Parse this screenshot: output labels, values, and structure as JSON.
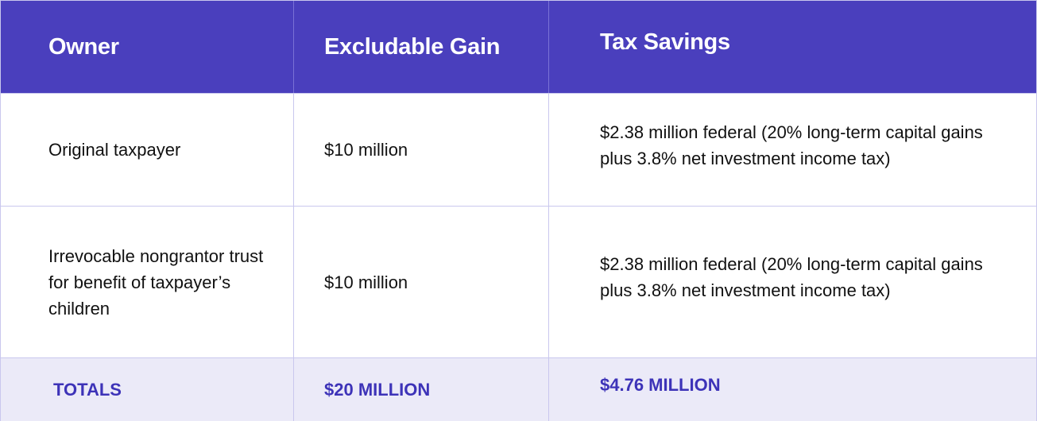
{
  "headers": [
    "Owner",
    "Excludable Gain",
    "Tax Savings"
  ],
  "rows": [
    {
      "owner": "Original taxpayer",
      "gain": "$10 million",
      "savings": "$2.38 million federal (20% long-term capital gains plus 3.8% net investment income tax)"
    },
    {
      "owner": "Irrevocable nongrantor trust for benefit of taxpayer’s children",
      "gain": "$10 million",
      "savings": "$2.38 million federal (20% long-term capital gains plus 3.8% net investment income tax)"
    }
  ],
  "totals": {
    "label": "TOTALS",
    "gain": "$20 MILLION",
    "savings": "$4.76 MILLION"
  },
  "colors": {
    "header_bg": "#4a3fbd",
    "totals_bg": "#ebeaf8",
    "totals_text": "#3d33b8",
    "border": "#c9c7ee"
  }
}
